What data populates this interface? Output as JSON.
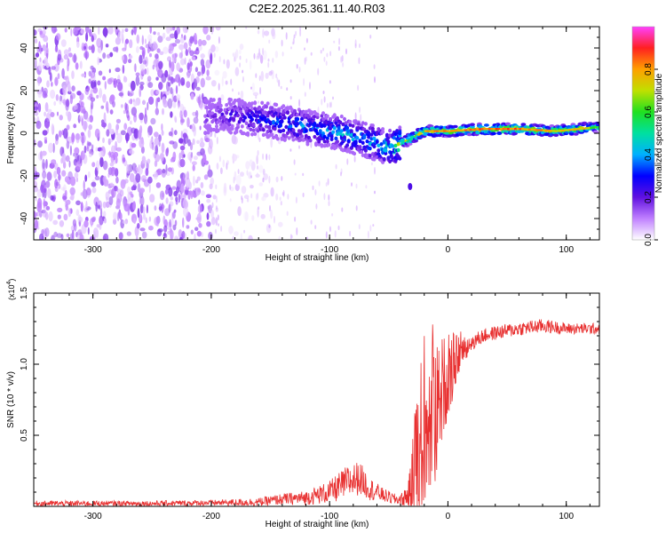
{
  "title": "C2E2.2025.361.11.40.R03",
  "chart_data": [
    {
      "type": "heatmap",
      "panel": "spectrogram",
      "xlabel": "Height of straight line (km)",
      "ylabel": "Frequency (Hz)",
      "xlim": [
        -350,
        128
      ],
      "ylim": [
        -50,
        50
      ],
      "x_ticks": [
        -300,
        -200,
        -100,
        0,
        100
      ],
      "y_ticks": [
        -40,
        -20,
        0,
        20,
        40
      ],
      "colorbar": {
        "label": "Normalized spectral amplitude",
        "range": [
          0.0,
          1.0
        ],
        "ticks": [
          "0.0",
          "0.2",
          "0.4",
          "0.6",
          "0.8"
        ],
        "colors": [
          "#ffffff",
          "#c080ff",
          "#6010e0",
          "#0000ff",
          "#00b0ff",
          "#00e0a0",
          "#20e020",
          "#c0e000",
          "#ffa000",
          "#ff2020",
          "#ff40ff"
        ]
      },
      "features": {
        "noise_region_x": [
          -350,
          -200
        ],
        "signal_band": {
          "x": [
            -205,
            -180,
            -150,
            -120,
            -90,
            -70,
            -50,
            -40,
            -20,
            0,
            30,
            60,
            90,
            110,
            128
          ],
          "center_freq": [
            8,
            8,
            6,
            3,
            0,
            -3,
            -7,
            -5,
            1,
            1,
            2,
            2,
            1,
            2,
            3
          ],
          "peak_amplitude": [
            0.2,
            0.3,
            0.4,
            0.45,
            0.5,
            0.5,
            0.6,
            0.75,
            0.85,
            0.85,
            0.9,
            0.9,
            0.8,
            0.85,
            0.6
          ]
        }
      }
    },
    {
      "type": "line",
      "panel": "snr",
      "xlabel": "Height of straight line (km)",
      "ylabel": "SNR (10 * v/v)",
      "y_multiplier": "(x10",
      "y_multiplier_exp": "4",
      "xlim": [
        -350,
        128
      ],
      "ylim": [
        0,
        1.5
      ],
      "x_ticks": [
        -300,
        -200,
        -100,
        0,
        100
      ],
      "y_ticks": [
        "0.5",
        "1.0",
        "1.5"
      ],
      "series": [
        {
          "name": "SNR",
          "color": "#e83030",
          "envelope": {
            "x": [
              -350,
              -250,
              -200,
              -160,
              -140,
              -120,
              -100,
              -85,
              -75,
              -65,
              -55,
              -45,
              -38,
              -32,
              -28,
              -24,
              -20,
              -16,
              -12,
              -8,
              -4,
              0,
              4,
              8,
              12,
              20,
              30,
              40,
              60,
              80,
              100,
              128
            ],
            "base": [
              0.02,
              0.02,
              0.025,
              0.03,
              0.05,
              0.06,
              0.1,
              0.17,
              0.2,
              0.12,
              0.08,
              0.05,
              0.05,
              0.1,
              0.25,
              0.4,
              0.55,
              0.6,
              0.65,
              0.75,
              0.85,
              0.92,
              0.98,
              1.05,
              1.1,
              1.15,
              1.2,
              1.22,
              1.25,
              1.27,
              1.25,
              1.25
            ],
            "amplitude": [
              0.02,
              0.02,
              0.02,
              0.03,
              0.04,
              0.05,
              0.08,
              0.12,
              0.12,
              0.08,
              0.05,
              0.04,
              0.05,
              0.15,
              0.45,
              0.6,
              0.6,
              0.55,
              0.6,
              0.45,
              0.35,
              0.3,
              0.25,
              0.15,
              0.1,
              0.06,
              0.05,
              0.05,
              0.05,
              0.05,
              0.04,
              0.04
            ]
          }
        }
      ]
    }
  ]
}
